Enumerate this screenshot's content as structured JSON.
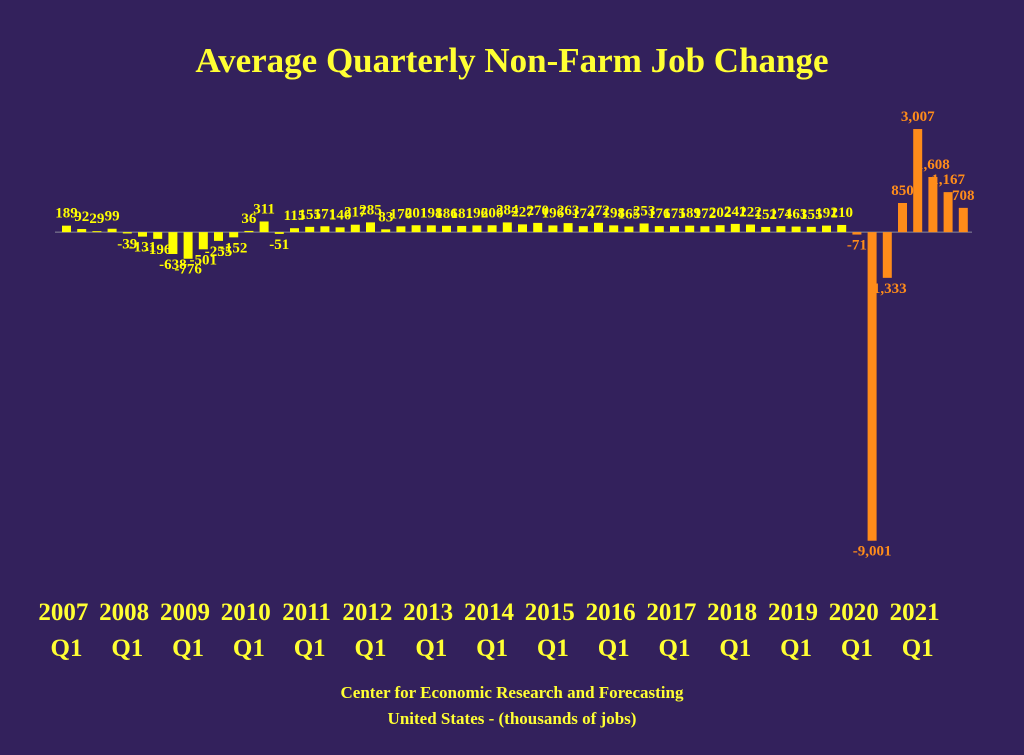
{
  "chart_data": {
    "type": "bar",
    "title": "Average Quarterly Non-Farm Job Change",
    "subtitle": [
      "Center for Economic Research and Forecasting",
      "United States - (thousands of jobs)"
    ],
    "categories": [
      "2007 Q1",
      null,
      null,
      null,
      "2008 Q1",
      null,
      null,
      null,
      "2009 Q1",
      null,
      null,
      null,
      "2010 Q1",
      null,
      null,
      null,
      "2011 Q1",
      null,
      null,
      null,
      "2012 Q1",
      null,
      null,
      null,
      "2013 Q1",
      null,
      null,
      null,
      "2014 Q1",
      null,
      null,
      null,
      "2015 Q1",
      null,
      null,
      null,
      "2016 Q1",
      null,
      null,
      null,
      "2017 Q1",
      null,
      null,
      null,
      "2018 Q1",
      null,
      null,
      null,
      "2019 Q1",
      null,
      null,
      null,
      "2020 Q1",
      null,
      null,
      null,
      "2021 Q1",
      null,
      null,
      null
    ],
    "values": [
      189,
      92,
      29,
      99,
      -39,
      -131,
      -196,
      -638,
      -776,
      -501,
      -255,
      -152,
      36,
      311,
      -51,
      115,
      155,
      171,
      140,
      217,
      285,
      83,
      170,
      201,
      198,
      186,
      181,
      196,
      200,
      284,
      227,
      270,
      196,
      263,
      174,
      272,
      198,
      165,
      253,
      176,
      175,
      189,
      172,
      202,
      241,
      222,
      152,
      174,
      163,
      155,
      191,
      210,
      -71,
      -9001,
      -1333,
      850,
      3007,
      1608,
      1167,
      708
    ],
    "value_labels": [
      "189",
      "92",
      "29",
      "99",
      "-39",
      "-131",
      "-196",
      "-638",
      "-776",
      "-501",
      "-255",
      "-152",
      "36",
      "311",
      "-51",
      "115",
      "155",
      "171",
      "140",
      "217",
      "285",
      "83",
      "170",
      "201",
      "198",
      "186",
      "181",
      "196",
      "200",
      "284",
      "227",
      "270",
      "196",
      "263",
      "174",
      "272",
      "198",
      "165",
      "253",
      "176",
      "175",
      "189",
      "172",
      "202",
      "241",
      "222",
      "152",
      "174",
      "163",
      "155",
      "191",
      "210",
      "-71",
      "-9,001",
      "-1,333",
      "850",
      "3,007",
      "1,608",
      "1,167",
      "708"
    ],
    "colors": [
      "#ffff00",
      "#ffff00",
      "#ffff00",
      "#ffff00",
      "#ffff00",
      "#ffff00",
      "#ffff00",
      "#ffff00",
      "#ffff00",
      "#ffff00",
      "#ffff00",
      "#ffff00",
      "#ffff00",
      "#ffff00",
      "#ffff00",
      "#ffff00",
      "#ffff00",
      "#ffff00",
      "#ffff00",
      "#ffff00",
      "#ffff00",
      "#ffff00",
      "#ffff00",
      "#ffff00",
      "#ffff00",
      "#ffff00",
      "#ffff00",
      "#ffff00",
      "#ffff00",
      "#ffff00",
      "#ffff00",
      "#ffff00",
      "#ffff00",
      "#ffff00",
      "#ffff00",
      "#ffff00",
      "#ffff00",
      "#ffff00",
      "#ffff00",
      "#ffff00",
      "#ffff00",
      "#ffff00",
      "#ffff00",
      "#ffff00",
      "#ffff00",
      "#ffff00",
      "#ffff00",
      "#ffff00",
      "#ffff00",
      "#ffff00",
      "#ffff00",
      "#ffff00",
      "#ff8c1a",
      "#ff8c1a",
      "#ff8c1a",
      "#ff8c1a",
      "#ff8c1a",
      "#ff8c1a",
      "#ff8c1a",
      "#ff8c1a"
    ],
    "ylim": [
      -10000,
      4000
    ]
  }
}
